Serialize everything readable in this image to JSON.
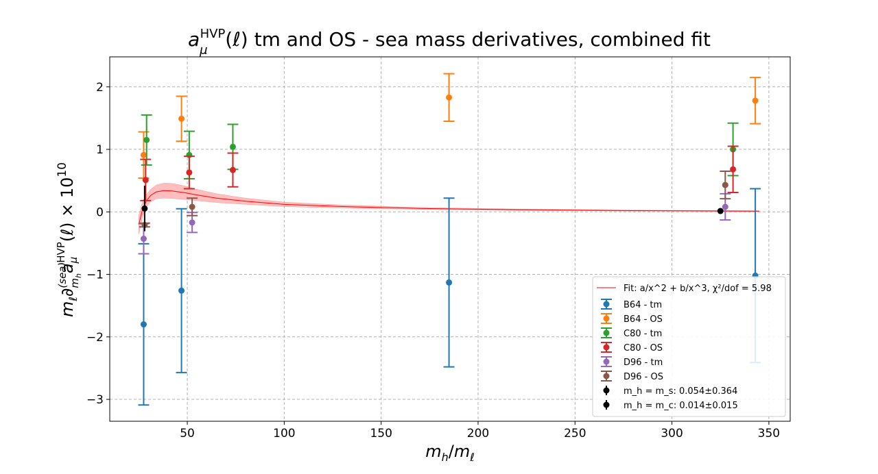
{
  "chart_data": {
    "type": "scatter",
    "title": {
      "prefix": "a",
      "sub": "μ",
      "sup": "HVP",
      "suffix": "(ℓ) tm and OS - sea mass derivatives, combined fit"
    },
    "xlabel": "m_h/m_ℓ",
    "ylabel": "m_ℓ ∂^(sea)_{m_h} a_μ^HVP(ℓ) × 10^10",
    "xlim": [
      10,
      361
    ],
    "ylim": [
      -3.35,
      2.48
    ],
    "xticks": [
      50,
      100,
      150,
      200,
      250,
      300,
      350
    ],
    "yticks": [
      -3,
      -2,
      -1,
      0,
      1,
      2
    ],
    "ytick_labels": [
      "−3",
      "−2",
      "−1",
      "0",
      "1",
      "2"
    ],
    "grid": true,
    "legend_position": "lower right",
    "series": [
      {
        "name": "B64 - tm",
        "color": "#1f77b4",
        "points": [
          {
            "x": 27.5,
            "y": -1.8,
            "err": 1.29
          },
          {
            "x": 47.0,
            "y": -1.26,
            "err": 1.31
          },
          {
            "x": 185.0,
            "y": -1.13,
            "err": 1.35
          },
          {
            "x": 343.0,
            "y": -1.02,
            "err": 1.39
          }
        ]
      },
      {
        "name": "B64 - OS",
        "color": "#ff7f0e",
        "points": [
          {
            "x": 27.5,
            "y": 0.91,
            "err": 0.37
          },
          {
            "x": 47.0,
            "y": 1.49,
            "err": 0.36
          },
          {
            "x": 185.0,
            "y": 1.83,
            "err": 0.38
          },
          {
            "x": 343.0,
            "y": 1.78,
            "err": 0.37
          }
        ]
      },
      {
        "name": "C80 - tm",
        "color": "#2ca02c",
        "points": [
          {
            "x": 29.0,
            "y": 1.15,
            "err": 0.4
          },
          {
            "x": 51.0,
            "y": 0.91,
            "err": 0.38
          },
          {
            "x": 73.5,
            "y": 1.04,
            "err": 0.36
          },
          {
            "x": 331.5,
            "y": 1.0,
            "err": 0.42
          }
        ]
      },
      {
        "name": "C80 - OS",
        "color": "#d62728",
        "points": [
          {
            "x": 28.5,
            "y": 0.51,
            "err": 0.33
          },
          {
            "x": 51.0,
            "y": 0.63,
            "err": 0.26
          },
          {
            "x": 73.5,
            "y": 0.67,
            "err": 0.27
          },
          {
            "x": 331.5,
            "y": 0.68,
            "err": 0.37
          }
        ]
      },
      {
        "name": "D96 - tm",
        "color": "#9467bd",
        "points": [
          {
            "x": 27.5,
            "y": -0.43,
            "err": 0.24
          },
          {
            "x": 52.5,
            "y": -0.17,
            "err": 0.16
          },
          {
            "x": 327.5,
            "y": 0.08,
            "err": 0.21
          }
        ]
      },
      {
        "name": "D96 - OS",
        "color": "#8c564b",
        "points": [
          {
            "x": 28.0,
            "y": -0.21,
            "err": 0.03
          },
          {
            "x": 52.5,
            "y": 0.08,
            "err": 0.14
          },
          {
            "x": 327.5,
            "y": 0.43,
            "err": 0.22
          }
        ]
      }
    ],
    "markers": [
      {
        "name": "m_h = m_s: 0.054±0.364",
        "x": 28.0,
        "y": 0.054,
        "err": 0.364,
        "color": "#000000"
      },
      {
        "name": "m_h = m_c: 0.014±0.015",
        "x": 325.0,
        "y": 0.014,
        "err": 0.015,
        "color": "#000000"
      }
    ],
    "fit": {
      "name": "Fit: a/x^2 + b/x^3, χ²/dof = 5.98",
      "color": "#ff0000",
      "band_color": "#ff9999",
      "x": [
        25,
        27,
        29,
        31,
        34,
        38,
        42,
        48,
        55,
        65,
        80,
        100,
        130,
        170,
        220,
        280,
        345
      ],
      "y": [
        -0.2,
        0.05,
        0.18,
        0.26,
        0.32,
        0.34,
        0.335,
        0.31,
        0.27,
        0.22,
        0.17,
        0.12,
        0.085,
        0.055,
        0.035,
        0.02,
        0.012
      ],
      "band_err": [
        0.15,
        0.12,
        0.1,
        0.1,
        0.11,
        0.12,
        0.12,
        0.11,
        0.09,
        0.07,
        0.05,
        0.035,
        0.025,
        0.015,
        0.01,
        0.008,
        0.006
      ]
    }
  },
  "legend_items": [
    {
      "type": "line",
      "label": "Fit: a/x^2 + b/x^3, ",
      "label_math": "χ²/dof = 5.98",
      "color": "#ff0000"
    },
    {
      "type": "err",
      "label": "B64 - tm",
      "color": "#1f77b4"
    },
    {
      "type": "err",
      "label": "B64 - OS",
      "color": "#ff7f0e"
    },
    {
      "type": "err",
      "label": "C80 - tm",
      "color": "#2ca02c"
    },
    {
      "type": "err",
      "label": "C80 - OS",
      "color": "#d62728"
    },
    {
      "type": "err",
      "label": "D96 - tm",
      "color": "#9467bd"
    },
    {
      "type": "err",
      "label": "D96 - OS",
      "color": "#8c564b"
    },
    {
      "type": "marker",
      "label": "m_h = m_s: 0.054±0.364",
      "color": "#000000"
    },
    {
      "type": "marker",
      "label": "m_h = m_c: 0.014±0.015",
      "color": "#000000"
    }
  ]
}
